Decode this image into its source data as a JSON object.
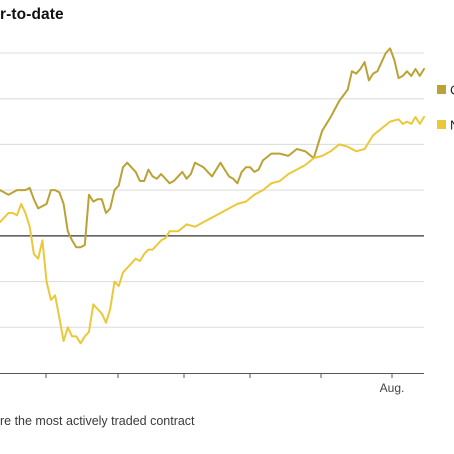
{
  "chart_data": {
    "type": "line",
    "title": "r-to-date",
    "note": "re the most actively traded contract",
    "x_tick_labels": [
      "",
      "",
      "",
      "",
      "",
      "Aug."
    ],
    "x_domain": [
      0,
      100
    ],
    "y_domain": [
      -3,
      4
    ],
    "grid": true,
    "legend_placement": "right",
    "series": [
      {
        "name": "C",
        "color": "#bba236",
        "x": [
          0,
          2,
          4,
          6,
          7,
          8,
          9,
          11,
          12,
          13,
          14,
          15,
          16,
          17,
          18,
          19,
          20,
          21,
          22,
          23,
          24,
          25,
          26,
          27,
          28,
          29,
          30,
          31,
          32,
          33,
          34,
          35,
          36,
          37,
          38,
          39,
          40,
          41,
          42,
          43,
          44,
          45,
          46,
          48,
          50,
          52,
          53,
          54,
          55,
          56,
          57,
          58,
          59,
          60,
          61,
          62,
          64,
          66,
          68,
          70,
          72,
          74,
          76,
          78,
          80,
          82,
          83,
          84,
          85,
          86,
          87,
          88,
          89,
          90,
          91,
          92,
          93,
          94,
          95,
          96,
          97,
          98,
          99,
          100
        ],
        "y": [
          1.0,
          0.9,
          1.0,
          1.0,
          1.05,
          0.8,
          0.6,
          0.7,
          1.0,
          1.0,
          0.95,
          0.7,
          0.1,
          -0.1,
          -0.25,
          -0.25,
          -0.2,
          0.9,
          0.75,
          0.8,
          0.8,
          0.5,
          0.6,
          1.0,
          1.1,
          1.5,
          1.6,
          1.5,
          1.4,
          1.2,
          1.2,
          1.45,
          1.3,
          1.25,
          1.35,
          1.25,
          1.15,
          1.2,
          1.3,
          1.4,
          1.25,
          1.35,
          1.6,
          1.5,
          1.3,
          1.6,
          1.45,
          1.3,
          1.25,
          1.15,
          1.4,
          1.5,
          1.5,
          1.4,
          1.45,
          1.65,
          1.8,
          1.8,
          1.75,
          1.9,
          1.85,
          1.7,
          2.3,
          2.6,
          2.95,
          3.2,
          3.6,
          3.55,
          3.65,
          3.8,
          3.4,
          3.55,
          3.6,
          3.8,
          4.0,
          4.1,
          3.85,
          3.45,
          3.5,
          3.6,
          3.5,
          3.65,
          3.5,
          3.65
        ]
      },
      {
        "name": "N",
        "color": "#ebc83a",
        "x": [
          0,
          1,
          2,
          3,
          4,
          5,
          6,
          7,
          8,
          9,
          10,
          11,
          12,
          13,
          14,
          15,
          16,
          17,
          18,
          19,
          20,
          21,
          22,
          23,
          24,
          25,
          26,
          27,
          28,
          29,
          30,
          31,
          32,
          33,
          34,
          35,
          36,
          37,
          38,
          39,
          40,
          42,
          44,
          46,
          48,
          50,
          52,
          54,
          56,
          58,
          60,
          62,
          64,
          66,
          68,
          70,
          72,
          74,
          76,
          78,
          80,
          82,
          84,
          86,
          88,
          90,
          92,
          94,
          95,
          96,
          97,
          98,
          99,
          100
        ],
        "y": [
          0.3,
          0.4,
          0.5,
          0.5,
          0.45,
          0.7,
          0.5,
          0.2,
          -0.4,
          -0.5,
          -0.1,
          -1.0,
          -1.4,
          -1.3,
          -1.8,
          -2.3,
          -2.0,
          -2.2,
          -2.2,
          -2.35,
          -2.2,
          -2.1,
          -1.5,
          -1.6,
          -1.7,
          -1.9,
          -1.6,
          -1.0,
          -1.1,
          -0.8,
          -0.7,
          -0.6,
          -0.5,
          -0.55,
          -0.4,
          -0.3,
          -0.3,
          -0.2,
          -0.1,
          -0.05,
          0.1,
          0.1,
          0.25,
          0.2,
          0.3,
          0.4,
          0.5,
          0.6,
          0.7,
          0.75,
          0.9,
          1.0,
          1.15,
          1.2,
          1.35,
          1.45,
          1.55,
          1.7,
          1.75,
          1.85,
          2.0,
          1.95,
          1.85,
          1.9,
          2.2,
          2.35,
          2.5,
          2.55,
          2.45,
          2.5,
          2.45,
          2.6,
          2.45,
          2.6
        ]
      }
    ]
  }
}
